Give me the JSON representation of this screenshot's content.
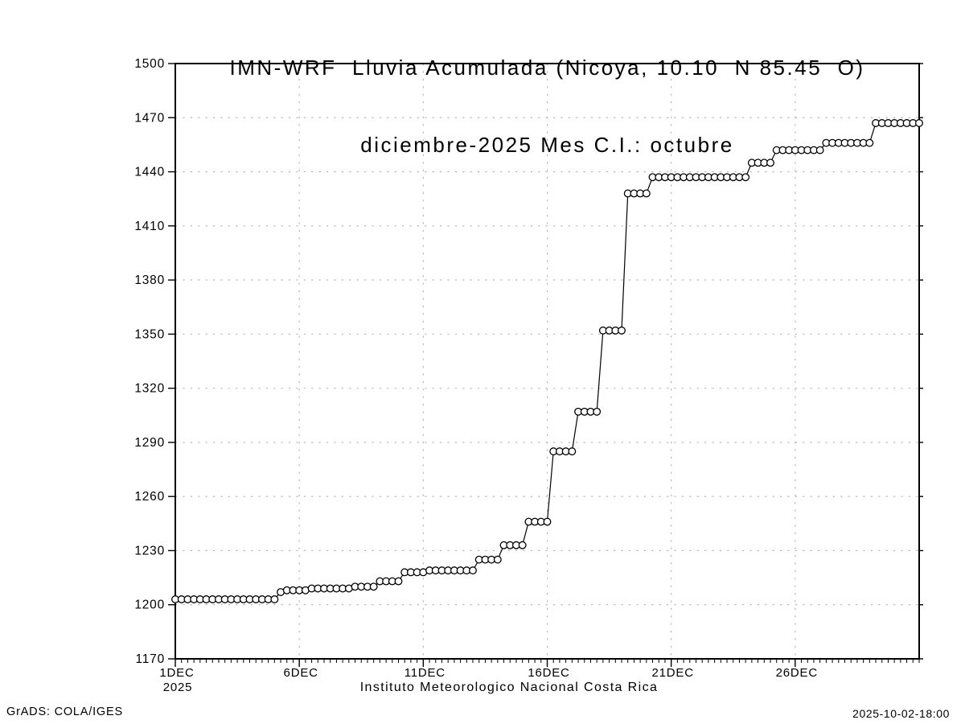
{
  "colors": {
    "background": "#ffffff",
    "line": "#000000",
    "marker_fill": "#ffffff",
    "marker_stroke": "#000000",
    "grid": "#b0b0b0",
    "frame": "#000000",
    "text": "#000000"
  },
  "footer": {
    "left": "GrADS: COLA/IGES",
    "center": "Instituto Meteorologico Nacional Costa Rica",
    "right": "2025-10-02-18:00"
  },
  "chart_data": {
    "type": "line",
    "title": "IMN-WRF  Lluvia Acumulada (Nicoya, 10.10  N 85.45  O)",
    "subtitle": "diciembre-2025 Mes C.I.: octubre",
    "xlabel": "",
    "ylabel": "",
    "ylim": [
      1170,
      1500
    ],
    "y_ticks": [
      1170,
      1200,
      1230,
      1260,
      1290,
      1320,
      1350,
      1380,
      1410,
      1440,
      1470,
      1500
    ],
    "xlim_days": [
      1,
      31
    ],
    "x_tick_days": [
      1,
      6,
      11,
      16,
      21,
      26
    ],
    "x_tick_labels": [
      "1DEC",
      "6DEC",
      "11DEC",
      "16DEC",
      "21DEC",
      "26DEC"
    ],
    "x_year_label": "2025",
    "x_grid_days": [
      6,
      11,
      16,
      21,
      26
    ],
    "grid": "dotted",
    "legend": "none",
    "points_per_day": 4,
    "marker": "open-circle",
    "series": [
      {
        "name": "lluvia-acumulada",
        "color": "#000000",
        "values": [
          1203,
          1203,
          1203,
          1203,
          1203,
          1203,
          1203,
          1203,
          1203,
          1203,
          1203,
          1203,
          1203,
          1203,
          1203,
          1203,
          1203,
          1207,
          1208,
          1208,
          1208,
          1208,
          1209,
          1209,
          1209,
          1209,
          1209,
          1209,
          1209,
          1210,
          1210,
          1210,
          1210,
          1213,
          1213,
          1213,
          1213,
          1218,
          1218,
          1218,
          1218,
          1219,
          1219,
          1219,
          1219,
          1219,
          1219,
          1219,
          1219,
          1225,
          1225,
          1225,
          1225,
          1233,
          1233,
          1233,
          1233,
          1246,
          1246,
          1246,
          1246,
          1285,
          1285,
          1285,
          1285,
          1307,
          1307,
          1307,
          1307,
          1352,
          1352,
          1352,
          1352,
          1428,
          1428,
          1428,
          1428,
          1437,
          1437,
          1437,
          1437,
          1437,
          1437,
          1437,
          1437,
          1437,
          1437,
          1437,
          1437,
          1437,
          1437,
          1437,
          1437,
          1445,
          1445,
          1445,
          1445,
          1452,
          1452,
          1452,
          1452,
          1452,
          1452,
          1452,
          1452,
          1456,
          1456,
          1456,
          1456,
          1456,
          1456,
          1456,
          1456,
          1467,
          1467,
          1467,
          1467,
          1467,
          1467,
          1467,
          1467
        ]
      }
    ]
  }
}
